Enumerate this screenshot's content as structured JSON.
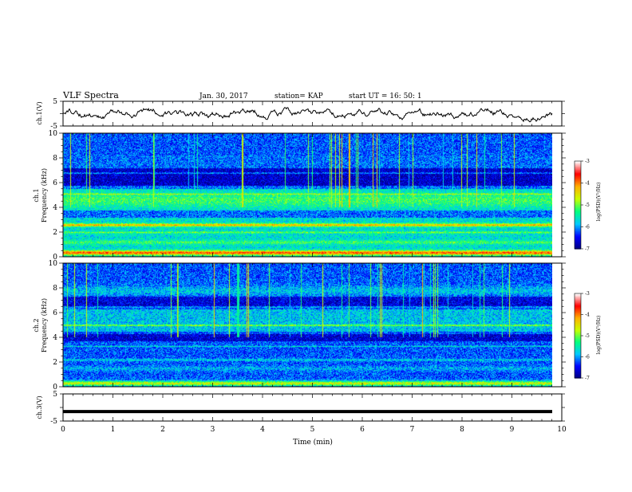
{
  "header": {
    "title": "VLF Spectra",
    "date": "Jan. 30, 2017",
    "station": "station= KAP",
    "start": "start UT =   16: 50: 1"
  },
  "chart_data": {
    "type": "heatmap",
    "x_range": [
      0,
      10
    ],
    "xlabel": "Time (min)",
    "x_ticks": [
      "0",
      "1",
      "2",
      "3",
      "4",
      "5",
      "6",
      "7",
      "8",
      "9",
      "10"
    ],
    "panels": {
      "ch1_waveform": {
        "ylabel": "ch.1(V)",
        "ylim": [
          -5,
          5
        ],
        "y_ticks": [
          "5",
          "-5"
        ],
        "description": "noisy waveform oscillating near 0 V, roughly between -2 and +2 V"
      },
      "ch1_spectrogram": {
        "ylabel": [
          "ch.1",
          "Frequency (kHz)"
        ],
        "ylim": [
          0,
          10
        ],
        "y_ticks": [
          "0",
          "2",
          "4",
          "6",
          "8",
          "10"
        ]
      },
      "ch2_spectrogram": {
        "ylabel": [
          "ch.2",
          "Frequency (kHz)"
        ],
        "ylim": [
          0,
          10
        ],
        "y_ticks": [
          "0",
          "2",
          "4",
          "6",
          "8",
          "10"
        ]
      },
      "ch3_waveform": {
        "ylabel": "ch.3(V)",
        "ylim": [
          -5,
          5
        ],
        "y_ticks": [
          "5",
          "-5"
        ],
        "value_V": -1.5
      }
    },
    "colorbar": {
      "label": "log(PSD)(V²/Hz)",
      "range": [
        -7,
        -3
      ],
      "ticks": [
        "-3",
        "-4",
        "-5",
        "-6",
        "-7"
      ],
      "colors": [
        "#00007f",
        "#0000ff",
        "#00c8ff",
        "#00ff80",
        "#c8ff00",
        "#ffb000",
        "#ff0000",
        "#ffffff"
      ]
    }
  }
}
